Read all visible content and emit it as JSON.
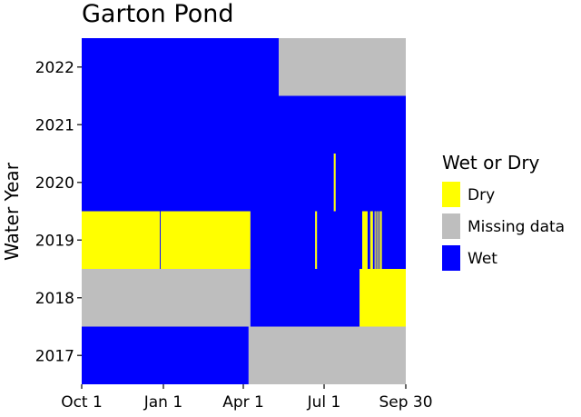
{
  "chart_data": {
    "type": "heatmap",
    "title": "Garton Pond",
    "xlabel": "",
    "ylabel": "Water Year",
    "x_unit": "day of water year (Oct 1 = day 1)",
    "x_range": [
      1,
      365
    ],
    "x_ticks": [
      {
        "label": "Oct 1",
        "day": 1
      },
      {
        "label": "Jan 1",
        "day": 93
      },
      {
        "label": "Apr 1",
        "day": 183
      },
      {
        "label": "Jul 1",
        "day": 274
      },
      {
        "label": "Sep 30",
        "day": 365
      }
    ],
    "years": [
      "2017",
      "2018",
      "2019",
      "2020",
      "2021",
      "2022"
    ],
    "legend": {
      "title": "Wet or Dry",
      "position": "right",
      "entries": [
        {
          "key": "Dry",
          "label": "Dry",
          "color": "#ffff00"
        },
        {
          "key": "Missing",
          "label": "Missing data",
          "color": "#bebebe"
        },
        {
          "key": "Wet",
          "label": "Wet",
          "color": "#0000ff"
        }
      ]
    },
    "rows": [
      {
        "year": "2017",
        "segments": [
          {
            "start": 1,
            "end": 188,
            "status": "Wet"
          },
          {
            "start": 189,
            "end": 365,
            "status": "Missing"
          }
        ]
      },
      {
        "year": "2018",
        "segments": [
          {
            "start": 1,
            "end": 190,
            "status": "Missing"
          },
          {
            "start": 191,
            "end": 313,
            "status": "Wet"
          },
          {
            "start": 314,
            "end": 365,
            "status": "Dry"
          }
        ]
      },
      {
        "year": "2019",
        "segments": [
          {
            "start": 1,
            "end": 88,
            "status": "Dry"
          },
          {
            "start": 89,
            "end": 89,
            "status": "Wet"
          },
          {
            "start": 90,
            "end": 190,
            "status": "Dry"
          },
          {
            "start": 191,
            "end": 263,
            "status": "Wet"
          },
          {
            "start": 264,
            "end": 265,
            "status": "Dry"
          },
          {
            "start": 266,
            "end": 316,
            "status": "Wet"
          },
          {
            "start": 317,
            "end": 322,
            "status": "Dry"
          },
          {
            "start": 323,
            "end": 325,
            "status": "Wet"
          },
          {
            "start": 326,
            "end": 328,
            "status": "Dry"
          },
          {
            "start": 329,
            "end": 330,
            "status": "Wet"
          },
          {
            "start": 331,
            "end": 331,
            "status": "Dry"
          },
          {
            "start": 332,
            "end": 332,
            "status": "Wet"
          },
          {
            "start": 333,
            "end": 333,
            "status": "Dry"
          },
          {
            "start": 334,
            "end": 334,
            "status": "Wet"
          },
          {
            "start": 335,
            "end": 335,
            "status": "Dry"
          },
          {
            "start": 336,
            "end": 336,
            "status": "Wet"
          },
          {
            "start": 337,
            "end": 338,
            "status": "Dry"
          },
          {
            "start": 339,
            "end": 365,
            "status": "Wet"
          }
        ]
      },
      {
        "year": "2020",
        "segments": [
          {
            "start": 1,
            "end": 284,
            "status": "Wet"
          },
          {
            "start": 285,
            "end": 286,
            "status": "Dry"
          },
          {
            "start": 287,
            "end": 365,
            "status": "Wet"
          }
        ]
      },
      {
        "year": "2021",
        "segments": [
          {
            "start": 1,
            "end": 365,
            "status": "Wet"
          }
        ]
      },
      {
        "year": "2022",
        "segments": [
          {
            "start": 1,
            "end": 222,
            "status": "Wet"
          },
          {
            "start": 223,
            "end": 365,
            "status": "Missing"
          }
        ]
      }
    ]
  }
}
